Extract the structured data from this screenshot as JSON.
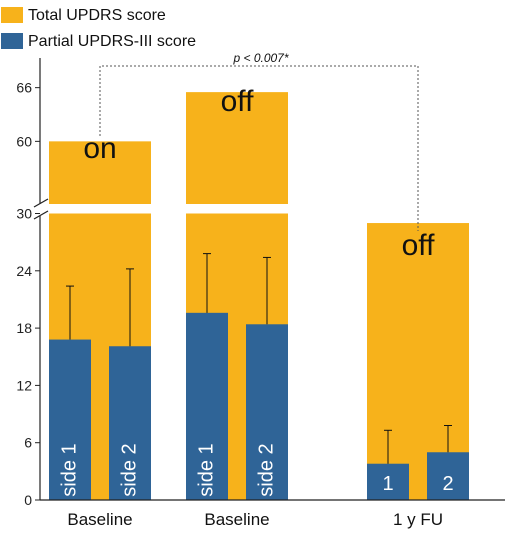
{
  "chart_data": {
    "type": "bar",
    "colors": {
      "total": "#F7B21B",
      "partial": "#2F6497",
      "axis": "#222222",
      "text": "#111111"
    },
    "legend": {
      "position": "top-left",
      "entries": [
        {
          "key": "total",
          "label": "Total UPDRS score"
        },
        {
          "key": "partial",
          "label": "Partial UPDRS-III score"
        }
      ]
    },
    "y_axis": {
      "broken": true,
      "lower_range": [
        0,
        30
      ],
      "upper_range": [
        53,
        68
      ],
      "ticks_lower": [
        "0",
        "6",
        "12",
        "18",
        "24",
        "30"
      ],
      "ticks_upper": [
        "60",
        "66"
      ]
    },
    "groups": [
      {
        "label": "Baseline",
        "state": "on",
        "total": 60,
        "partial": [
          {
            "label": "side 1",
            "value": 16.8,
            "error": 5.6
          },
          {
            "label": "side 2",
            "value": 16.1,
            "error": 8.1
          }
        ]
      },
      {
        "label": "Baseline",
        "state": "off",
        "total": 65.5,
        "partial": [
          {
            "label": "side 1",
            "value": 19.6,
            "error": 6.2
          },
          {
            "label": "side 2",
            "value": 18.4,
            "error": 7.0
          }
        ]
      },
      {
        "label": "1 y FU",
        "state": "off",
        "total": 29,
        "partial": [
          {
            "label": "1",
            "value": 3.8,
            "error": 3.5
          },
          {
            "label": "2",
            "value": 5.0,
            "error": 2.8
          }
        ]
      }
    ],
    "annotation": {
      "text": "p < 0.007*",
      "from_group": 0,
      "to_group": 2
    }
  }
}
